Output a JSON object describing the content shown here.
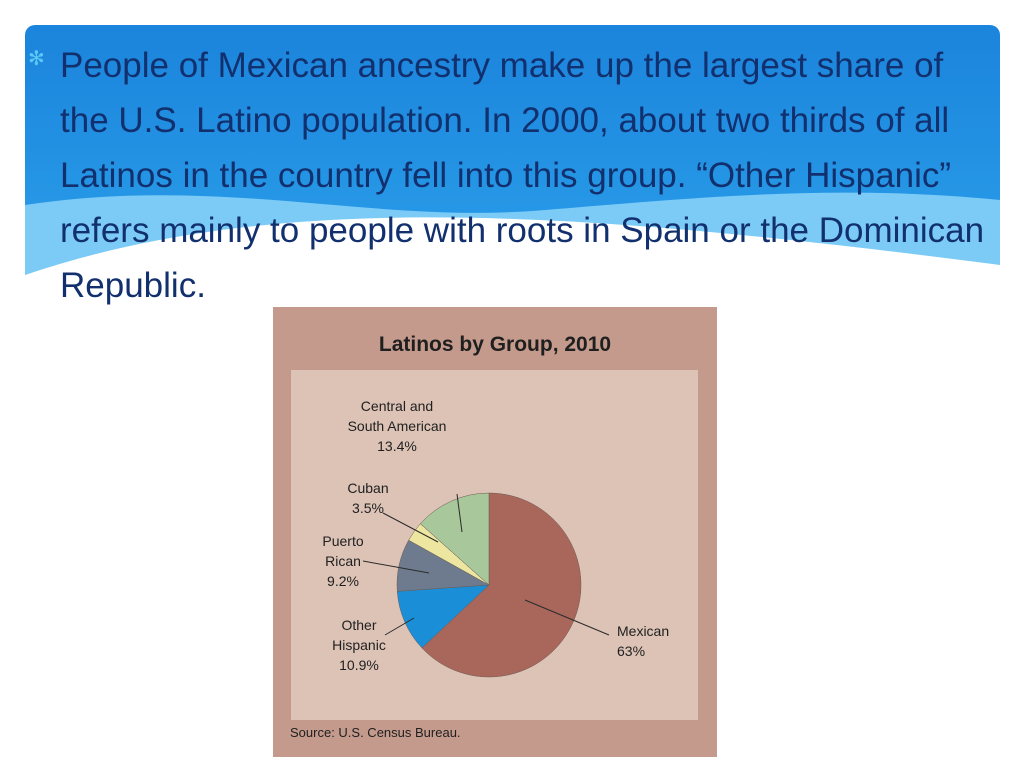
{
  "slide": {
    "bullet_icon": "asterisk-bullet-icon",
    "body_text": "People of Mexican ancestry make up the largest share of the U.S. Latino population. In 2000, about two thirds of all Latinos in the country fell into this group. “Other Hispanic” refers mainly to people with roots in Spain or the Dominican Republic.",
    "colors": {
      "banner_dark": "#1e88de",
      "banner_light": "#6cc4f4",
      "text": "#12306e",
      "bullet": "#5bc8f5"
    }
  },
  "chart_data": {
    "type": "pie",
    "title": "Latinos by Group, 2010",
    "source": "Source: U.S. Census Bureau.",
    "slices": [
      {
        "name": "Mexican",
        "lines": [
          "Mexican"
        ],
        "pct_label": "63%",
        "value": 63,
        "color": "#a9675c"
      },
      {
        "name": "Other Hispanic",
        "lines": [
          "Other",
          "Hispanic"
        ],
        "pct_label": "10.9%",
        "value": 10.9,
        "color": "#1a8fd8"
      },
      {
        "name": "Puerto Rican",
        "lines": [
          "Puerto",
          "Rican"
        ],
        "pct_label": "9.2%",
        "value": 9.2,
        "color": "#6e7b8e"
      },
      {
        "name": "Cuban",
        "lines": [
          "Cuban"
        ],
        "pct_label": "3.5%",
        "value": 3.5,
        "color": "#ece6a0"
      },
      {
        "name": "Central and South American",
        "lines": [
          "Central and",
          "South American"
        ],
        "pct_label": "13.4%",
        "value": 13.4,
        "color": "#a8c79a"
      }
    ],
    "start_angle_deg": 90,
    "direction": "clockwise",
    "legend": "none"
  }
}
